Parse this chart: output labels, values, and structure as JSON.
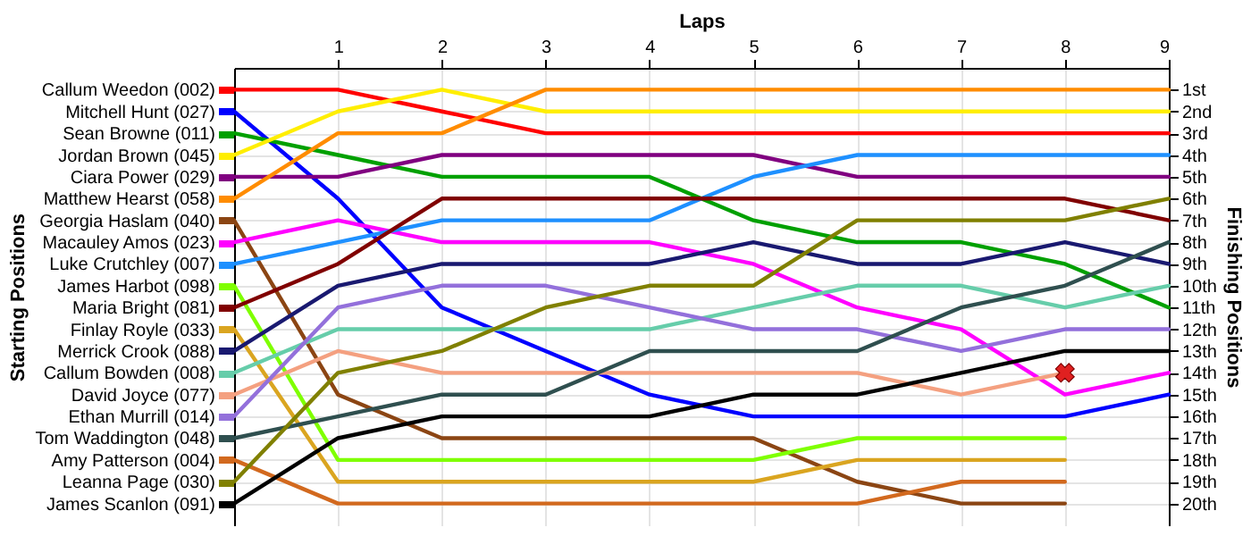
{
  "chart_data": {
    "type": "line",
    "xlabel": "Laps",
    "legend_title": "Starting Positions",
    "y2label": "Finishing Positions",
    "x": [
      0,
      1,
      2,
      3,
      4,
      5,
      6,
      7,
      8,
      9
    ],
    "xlim": [
      0,
      9
    ],
    "xticks": [
      1,
      2,
      3,
      4,
      5,
      6,
      7,
      8,
      9
    ],
    "y2lim": [
      21,
      0
    ],
    "y2ticks": [
      {
        "value": 1,
        "label": "1st"
      },
      {
        "value": 2,
        "label": "2nd"
      },
      {
        "value": 3,
        "label": "3rd"
      },
      {
        "value": 4,
        "label": "4th"
      },
      {
        "value": 5,
        "label": "5th"
      },
      {
        "value": 6,
        "label": "6th"
      },
      {
        "value": 7,
        "label": "7th"
      },
      {
        "value": 8,
        "label": "8th"
      },
      {
        "value": 9,
        "label": "9th"
      },
      {
        "value": 10,
        "label": "10th"
      },
      {
        "value": 11,
        "label": "11th"
      },
      {
        "value": 12,
        "label": "12th"
      },
      {
        "value": 13,
        "label": "13th"
      },
      {
        "value": 14,
        "label": "14th"
      },
      {
        "value": 15,
        "label": "15th"
      },
      {
        "value": 16,
        "label": "16th"
      },
      {
        "value": 17,
        "label": "17th"
      },
      {
        "value": 18,
        "label": "18th"
      },
      {
        "value": 19,
        "label": "19th"
      },
      {
        "value": 20,
        "label": "20th"
      }
    ],
    "grid": true,
    "legend": "left",
    "marker": "none",
    "series": [
      {
        "name": "Callum Weedon (002)",
        "axis": "y2",
        "color": "#ff0000",
        "values": [
          1,
          1,
          2,
          3,
          3,
          3,
          3,
          3,
          3,
          3
        ]
      },
      {
        "name": "Mitchell Hunt (027)",
        "axis": "y2",
        "color": "#0000ff",
        "values": [
          2,
          6,
          11,
          13,
          15,
          16,
          16,
          16,
          16,
          15
        ]
      },
      {
        "name": "Sean Browne (011)",
        "axis": "y2",
        "color": "#00a000",
        "values": [
          3,
          4,
          5,
          5,
          5,
          7,
          8,
          8,
          9,
          11
        ]
      },
      {
        "name": "Jordan Brown (045)",
        "axis": "y2",
        "color": "#ffee00",
        "values": [
          4,
          2,
          1,
          2,
          2,
          2,
          2,
          2,
          2,
          2
        ]
      },
      {
        "name": "Ciara Power (029)",
        "axis": "y2",
        "color": "#800080",
        "values": [
          5,
          5,
          4,
          4,
          4,
          4,
          5,
          5,
          5,
          5
        ]
      },
      {
        "name": "Matthew Hearst (058)",
        "axis": "y2",
        "color": "#ff8c00",
        "values": [
          6,
          3,
          3,
          1,
          1,
          1,
          1,
          1,
          1,
          1
        ]
      },
      {
        "name": "Georgia Haslam (040)",
        "axis": "y2",
        "color": "#8b4513",
        "values": [
          7,
          15,
          17,
          17,
          17,
          17,
          19,
          20,
          20,
          null
        ]
      },
      {
        "name": "Macauley Amos (023)",
        "axis": "y2",
        "color": "#ff00ff",
        "values": [
          8,
          7,
          8,
          8,
          8,
          9,
          11,
          12,
          15,
          14
        ]
      },
      {
        "name": "Luke Crutchley (007)",
        "axis": "y2",
        "color": "#1e90ff",
        "values": [
          9,
          8,
          7,
          7,
          7,
          5,
          4,
          4,
          4,
          4
        ]
      },
      {
        "name": "James Harbot (098)",
        "axis": "y2",
        "color": "#7fff00",
        "values": [
          10,
          18,
          18,
          18,
          18,
          18,
          17,
          17,
          17,
          null
        ]
      },
      {
        "name": "Maria Bright (081)",
        "axis": "y2",
        "color": "#800000",
        "values": [
          11,
          9,
          6,
          6,
          6,
          6,
          6,
          6,
          6,
          7
        ]
      },
      {
        "name": "Finlay Royle (033)",
        "axis": "y2",
        "color": "#daa520",
        "values": [
          12,
          19,
          19,
          19,
          19,
          19,
          18,
          18,
          18,
          null
        ]
      },
      {
        "name": "Merrick Crook (088)",
        "axis": "y2",
        "color": "#191970",
        "values": [
          13,
          10,
          9,
          9,
          9,
          8,
          9,
          9,
          8,
          9
        ]
      },
      {
        "name": "Callum Bowden (008)",
        "axis": "y2",
        "color": "#66cdaa",
        "values": [
          14,
          12,
          12,
          12,
          12,
          11,
          10,
          10,
          11,
          10
        ]
      },
      {
        "name": "David Joyce (077)",
        "axis": "y2",
        "color": "#f4a080",
        "values": [
          15,
          13,
          14,
          14,
          14,
          14,
          14,
          15,
          14,
          null
        ]
      },
      {
        "name": "Ethan Murrill (014)",
        "axis": "y2",
        "color": "#9370db",
        "values": [
          16,
          11,
          10,
          10,
          11,
          12,
          12,
          13,
          12,
          12
        ]
      },
      {
        "name": "Tom Waddington (048)",
        "axis": "y2",
        "color": "#2f4f4f",
        "values": [
          17,
          16,
          15,
          15,
          13,
          13,
          13,
          11,
          10,
          8
        ]
      },
      {
        "name": "Amy Patterson (004)",
        "axis": "y2",
        "color": "#d2691e",
        "values": [
          18,
          20,
          20,
          20,
          20,
          20,
          20,
          19,
          19,
          null
        ]
      },
      {
        "name": "Leanna Page (030)",
        "axis": "y2",
        "color": "#808000",
        "values": [
          19,
          14,
          13,
          11,
          10,
          10,
          7,
          7,
          7,
          6
        ]
      },
      {
        "name": "James Scanlon (091)",
        "axis": "y2",
        "color": "#000000",
        "values": [
          20,
          17,
          16,
          16,
          16,
          15,
          15,
          14,
          13,
          13
        ]
      },
      {
        "type": "scatter",
        "axis": "y2",
        "marker": "cross",
        "color": "#e02020",
        "x": [
          8
        ],
        "values": [
          14
        ]
      }
    ]
  }
}
